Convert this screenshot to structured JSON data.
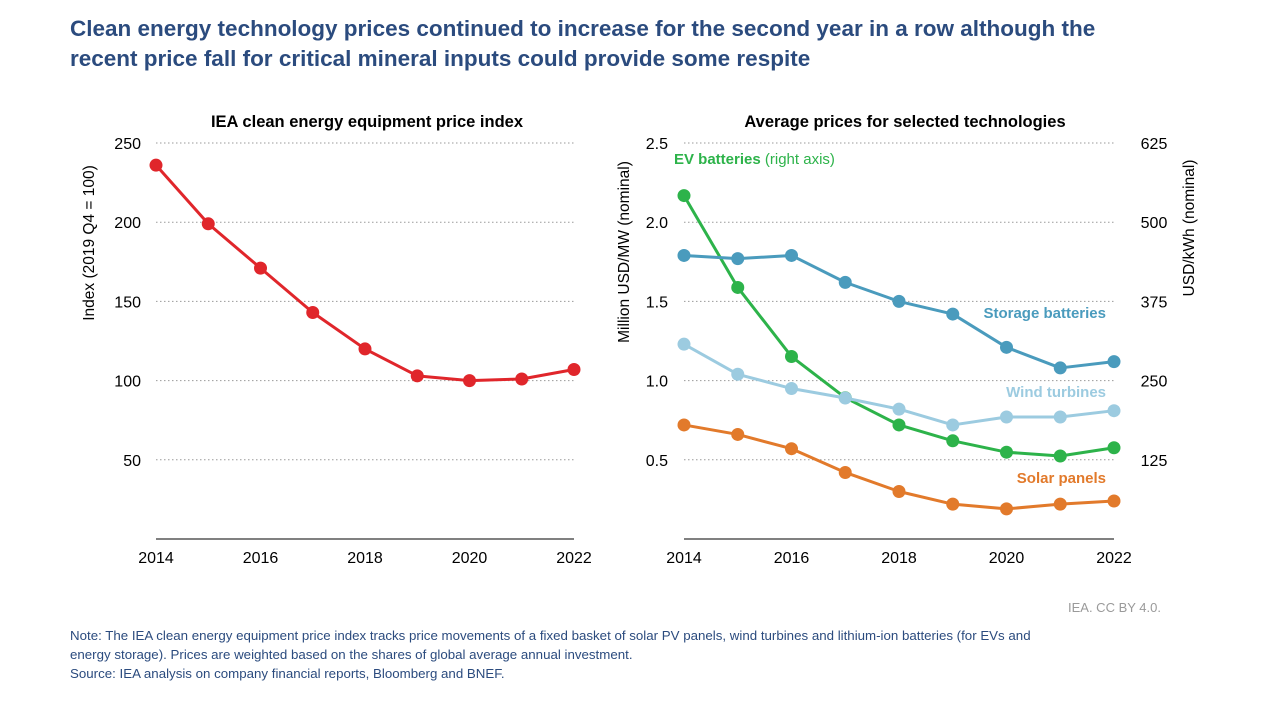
{
  "headline": {
    "line1": "Clean energy technology prices continued to increase for the second year in a row although the",
    "line2": "recent price fall for critical mineral inputs could provide some respite"
  },
  "credit": "IEA. CC BY 4.0.",
  "note": {
    "line1": "Note: The IEA clean energy equipment price index tracks price movements of a fixed basket of solar PV panels, wind turbines and lithium-ion batteries (for EVs and",
    "line2": "energy storage). Prices are weighted based on the shares of global average annual investment.",
    "line3": "Source: IEA analysis on company financial reports, Bloomberg and BNEF."
  },
  "colors": {
    "headline": "#2b4b7e",
    "index": "#e0262b",
    "ev": "#2db34a",
    "storage": "#4a9bbd",
    "wind": "#9ccbe0",
    "solar": "#e27a2b",
    "grid": "#9a9a9a"
  },
  "chart_data": [
    {
      "type": "line",
      "title": "IEA clean energy equipment price index",
      "ylabel": "Index (2019 Q4 = 100)",
      "xlabel": "",
      "x": [
        2014,
        2015,
        2016,
        2017,
        2018,
        2019,
        2020,
        2021,
        2022
      ],
      "x_ticks": [
        "2014",
        "2016",
        "2018",
        "2020",
        "2022"
      ],
      "xlim": [
        2014,
        2022
      ],
      "ylim": [
        0,
        250
      ],
      "y_ticks": [
        "50",
        "100",
        "150",
        "200",
        "250"
      ],
      "y_tick_values": [
        50,
        100,
        150,
        200,
        250
      ],
      "grid": "horizontal dotted",
      "series": [
        {
          "values": [
            236,
            199,
            171,
            143,
            120,
            103,
            100,
            101,
            107
          ]
        }
      ]
    },
    {
      "type": "line",
      "title": "Average prices for selected technologies",
      "ylabel": "Million USD/MW (nominal)",
      "ylabel_right": "USD/kWh (nominal)",
      "xlabel": "",
      "x": [
        2014,
        2015,
        2016,
        2017,
        2018,
        2019,
        2020,
        2021,
        2022
      ],
      "x_ticks": [
        "2014",
        "2016",
        "2018",
        "2020",
        "2022"
      ],
      "xlim": [
        2014,
        2022
      ],
      "ylim": [
        0,
        2.5
      ],
      "ylim_right": [
        0,
        625
      ],
      "y_ticks": [
        "0.5",
        "1.0",
        "1.5",
        "2.0",
        "2.5"
      ],
      "y_tick_values": [
        0.5,
        1.0,
        1.5,
        2.0,
        2.5
      ],
      "y_ticks_right": [
        "125",
        "250",
        "375",
        "500",
        "625"
      ],
      "grid": "horizontal dotted",
      "series": [
        {
          "name": "EV batteries",
          "name_suffix": " (right axis)",
          "axis": "right",
          "values": [
            542,
            397,
            288,
            223,
            180,
            155,
            137,
            131,
            144
          ]
        },
        {
          "name": "Storage batteries",
          "axis": "left",
          "values": [
            1.79,
            1.77,
            1.79,
            1.62,
            1.5,
            1.42,
            1.21,
            1.08,
            1.12
          ]
        },
        {
          "name": "Wind turbines",
          "axis": "left",
          "values": [
            1.23,
            1.04,
            0.95,
            0.89,
            0.82,
            0.72,
            0.77,
            0.77,
            0.81
          ]
        },
        {
          "name": "Solar panels",
          "axis": "left",
          "values": [
            0.72,
            0.66,
            0.57,
            0.42,
            0.3,
            0.22,
            0.19,
            0.22,
            0.24
          ]
        }
      ]
    }
  ]
}
